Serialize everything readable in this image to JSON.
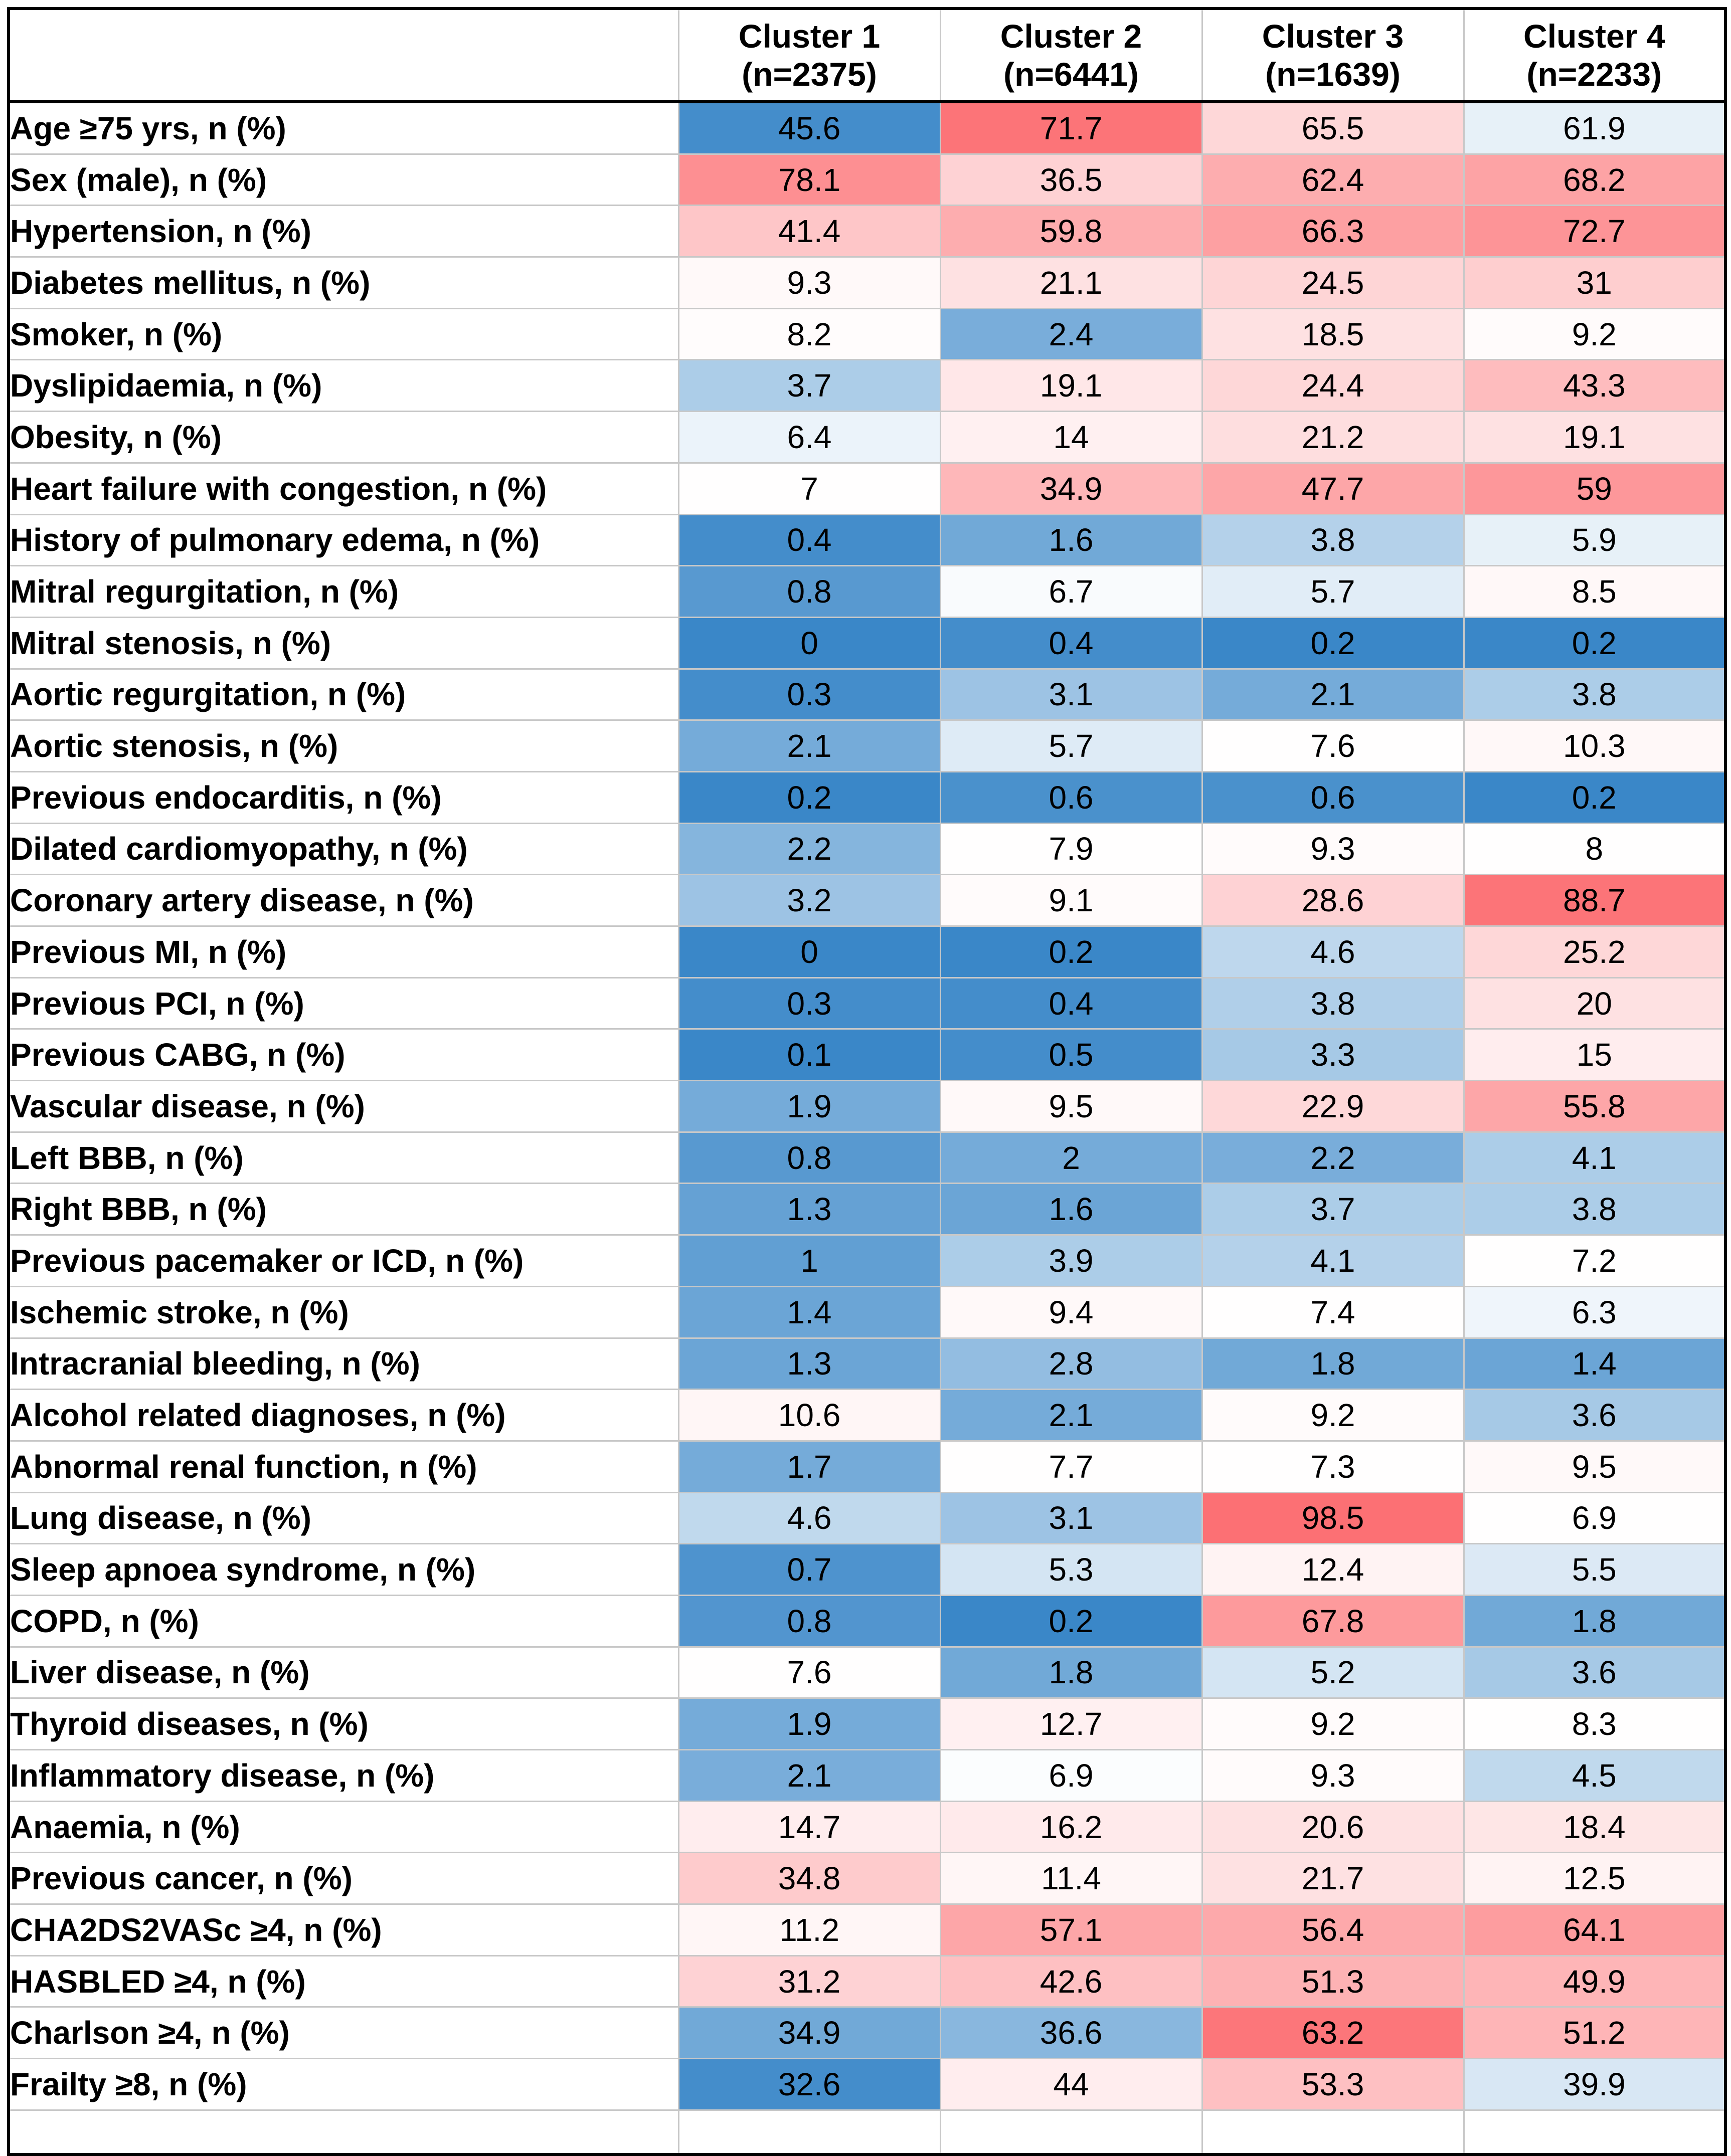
{
  "chart_data": {
    "type": "heatmap",
    "title": "",
    "columns": [
      {
        "label": "Cluster 1",
        "n": "(n=2375)"
      },
      {
        "label": "Cluster 2",
        "n": "(n=6441)"
      },
      {
        "label": "Cluster 3",
        "n": "(n=1639)"
      },
      {
        "label": "Cluster 4",
        "n": "(n=2233)"
      }
    ],
    "colors": {
      "low": "#3a87c8",
      "mid": "#ffffff",
      "high": "#fc6a6e"
    },
    "rows": [
      {
        "label": "Age ≥75 yrs, n (%)",
        "values": [
          "45.6",
          "71.7",
          "65.5",
          "61.9"
        ],
        "shades": [
          -0.95,
          0.93,
          0.27,
          -0.12
        ]
      },
      {
        "label": "Sex (male), n (%)",
        "values": [
          "78.1",
          "36.5",
          "62.4",
          "68.2"
        ],
        "shades": [
          0.75,
          0.3,
          0.55,
          0.62
        ]
      },
      {
        "label": "Hypertension, n (%)",
        "values": [
          "41.4",
          "59.8",
          "66.3",
          "72.7"
        ],
        "shades": [
          0.38,
          0.55,
          0.64,
          0.72
        ]
      },
      {
        "label": "Diabetes mellitus, n (%)",
        "values": [
          "9.3",
          "21.1",
          "24.5",
          "31"
        ],
        "shades": [
          0.04,
          0.2,
          0.28,
          0.33
        ]
      },
      {
        "label": "Smoker, n (%)",
        "values": [
          "8.2",
          "2.4",
          "18.5",
          "9.2"
        ],
        "shades": [
          0.02,
          -0.68,
          0.2,
          0.03
        ]
      },
      {
        "label": "Dyslipidaemia, n (%)",
        "values": [
          "3.7",
          "19.1",
          "24.4",
          "43.3"
        ],
        "shades": [
          -0.42,
          0.16,
          0.27,
          0.45
        ]
      },
      {
        "label": "Obesity, n (%)",
        "values": [
          "6.4",
          "14",
          "21.2",
          "19.1"
        ],
        "shades": [
          -0.1,
          0.1,
          0.22,
          0.2
        ]
      },
      {
        "label": "Heart failure with congestion, n (%)",
        "values": [
          "7",
          "34.9",
          "47.7",
          "59"
        ],
        "shades": [
          0.01,
          0.48,
          0.6,
          0.7
        ]
      },
      {
        "label": "History of pulmonary edema, n (%)",
        "values": [
          "0.4",
          "1.6",
          "3.8",
          "5.9"
        ],
        "shades": [
          -0.95,
          -0.72,
          -0.38,
          -0.12
        ]
      },
      {
        "label": "Mitral regurgitation, n (%)",
        "values": [
          "0.8",
          "6.7",
          "5.7",
          "8.5"
        ],
        "shades": [
          -0.85,
          -0.03,
          -0.15,
          0.05
        ]
      },
      {
        "label": "Mitral stenosis, n (%)",
        "values": [
          "0",
          "0.4",
          "0.2",
          "0.2"
        ],
        "shades": [
          -1,
          -0.95,
          -1,
          -1
        ]
      },
      {
        "label": "Aortic regurgitation, n (%)",
        "values": [
          "0.3",
          "3.1",
          "2.1",
          "3.8"
        ],
        "shades": [
          -0.95,
          -0.5,
          -0.7,
          -0.42
        ]
      },
      {
        "label": "Aortic stenosis, n (%)",
        "values": [
          "2.1",
          "5.7",
          "7.6",
          "10.3"
        ],
        "shades": [
          -0.7,
          -0.17,
          0.01,
          0.05
        ]
      },
      {
        "label": "Previous endocarditis, n (%)",
        "values": [
          "0.2",
          "0.6",
          "0.6",
          "0.2"
        ],
        "shades": [
          -1,
          -0.92,
          -0.92,
          -1
        ]
      },
      {
        "label": "Dilated cardiomyopathy, n (%)",
        "values": [
          "2.2",
          "7.9",
          "9.3",
          "8"
        ],
        "shades": [
          -0.62,
          0.01,
          0.03,
          0.01
        ]
      },
      {
        "label": "Coronary artery disease, n (%)",
        "values": [
          "3.2",
          "9.1",
          "28.6",
          "88.7"
        ],
        "shades": [
          -0.5,
          0.03,
          0.3,
          0.93
        ]
      },
      {
        "label": "Previous MI, n (%)",
        "values": [
          "0",
          "0.2",
          "4.6",
          "25.2"
        ],
        "shades": [
          -1,
          -1,
          -0.33,
          0.27
        ]
      },
      {
        "label": "Previous PCI, n (%)",
        "values": [
          "0.3",
          "0.4",
          "3.8",
          "20"
        ],
        "shades": [
          -0.95,
          -0.95,
          -0.4,
          0.2
        ]
      },
      {
        "label": "Previous CABG, n (%)",
        "values": [
          "0.1",
          "0.5",
          "3.3",
          "15"
        ],
        "shades": [
          -1,
          -0.95,
          -0.45,
          0.12
        ]
      },
      {
        "label": "Vascular disease, n (%)",
        "values": [
          "1.9",
          "9.5",
          "22.9",
          "55.8"
        ],
        "shades": [
          -0.7,
          0.04,
          0.26,
          0.6
        ]
      },
      {
        "label": "Left BBB, n (%)",
        "values": [
          "0.8",
          "2",
          "2.2",
          "4.1"
        ],
        "shades": [
          -0.85,
          -0.7,
          -0.68,
          -0.42
        ]
      },
      {
        "label": "Right BBB, n (%)",
        "values": [
          "1.3",
          "1.6",
          "3.7",
          "3.8"
        ],
        "shades": [
          -0.78,
          -0.75,
          -0.42,
          -0.42
        ]
      },
      {
        "label": "Previous pacemaker or ICD, n (%)",
        "values": [
          "1",
          "3.9",
          "4.1",
          "7.2"
        ],
        "shades": [
          -0.8,
          -0.42,
          -0.38,
          0.01
        ]
      },
      {
        "label": "Ischemic stroke, n (%)",
        "values": [
          "1.4",
          "9.4",
          "7.4",
          "6.3"
        ],
        "shades": [
          -0.75,
          0.04,
          0.01,
          -0.08
        ]
      },
      {
        "label": "Intracranial bleeding, n (%)",
        "values": [
          "1.3",
          "2.8",
          "1.8",
          "1.4"
        ],
        "shades": [
          -0.75,
          -0.55,
          -0.72,
          -0.75
        ]
      },
      {
        "label": "Alcohol related diagnoses, n (%)",
        "values": [
          "10.6",
          "2.1",
          "9.2",
          "3.6"
        ],
        "shades": [
          0.06,
          -0.7,
          0.03,
          -0.45
        ]
      },
      {
        "label": "Abnormal renal function, n (%)",
        "values": [
          "1.7",
          "7.7",
          "7.3",
          "9.5"
        ],
        "shades": [
          -0.7,
          0.01,
          0.01,
          0.04
        ]
      },
      {
        "label": "Lung disease, n (%)",
        "values": [
          "4.6",
          "3.1",
          "98.5",
          "6.9"
        ],
        "shades": [
          -0.32,
          -0.5,
          0.96,
          0.01
        ]
      },
      {
        "label": "Sleep apnoea syndrome, n (%)",
        "values": [
          "0.7",
          "5.3",
          "12.4",
          "5.5"
        ],
        "shades": [
          -0.9,
          -0.22,
          0.08,
          -0.18
        ]
      },
      {
        "label": "COPD, n (%)",
        "values": [
          "0.8",
          "0.2",
          "67.8",
          "1.8"
        ],
        "shades": [
          -0.88,
          -1,
          0.68,
          -0.72
        ]
      },
      {
        "label": "Liver disease, n (%)",
        "values": [
          "7.6",
          "1.8",
          "5.2",
          "3.6"
        ],
        "shades": [
          0.01,
          -0.72,
          -0.22,
          -0.45
        ]
      },
      {
        "label": "Thyroid diseases, n (%)",
        "values": [
          "1.9",
          "12.7",
          "9.2",
          "8.3"
        ],
        "shades": [
          -0.7,
          0.1,
          0.03,
          0.01
        ]
      },
      {
        "label": "Inflammatory disease, n (%)",
        "values": [
          "2.1",
          "6.9",
          "9.3",
          "4.5"
        ],
        "shades": [
          -0.68,
          -0.02,
          0.03,
          -0.32
        ]
      },
      {
        "label": "Anaemia, n (%)",
        "values": [
          "14.7",
          "16.2",
          "20.6",
          "18.4"
        ],
        "shades": [
          0.12,
          0.14,
          0.2,
          0.17
        ]
      },
      {
        "label": "Previous cancer, n (%)",
        "values": [
          "34.8",
          "11.4",
          "21.7",
          "12.5"
        ],
        "shades": [
          0.35,
          0.06,
          0.2,
          0.08
        ]
      },
      {
        "label": "CHA2DS2VASc ≥4, n (%)",
        "values": [
          "11.2",
          "57.1",
          "56.4",
          "64.1"
        ],
        "shades": [
          0.06,
          0.6,
          0.58,
          0.66
        ]
      },
      {
        "label": "HASBLED ≥4, n (%)",
        "values": [
          "31.2",
          "42.6",
          "51.3",
          "49.9"
        ],
        "shades": [
          0.3,
          0.42,
          0.52,
          0.5
        ]
      },
      {
        "label": "Charlson ≥4, n (%)",
        "values": [
          "34.9",
          "36.6",
          "63.2",
          "51.2"
        ],
        "shades": [
          -0.72,
          -0.6,
          0.92,
          0.5
        ]
      },
      {
        "label": "Frailty ≥8, n (%)",
        "values": [
          "32.6",
          "44",
          "53.3",
          "39.9"
        ],
        "shades": [
          -0.95,
          0.12,
          0.42,
          -0.2
        ]
      }
    ]
  }
}
